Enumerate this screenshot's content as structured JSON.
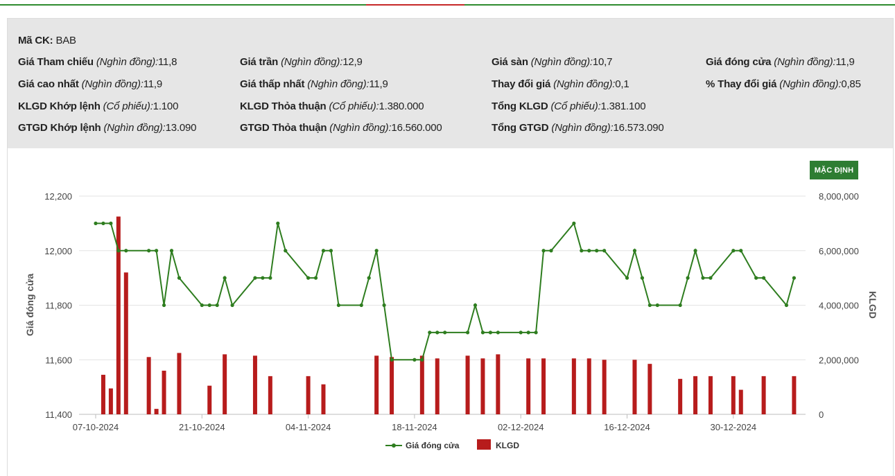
{
  "stock": {
    "code_label": "Mã CK:",
    "code": "BAB",
    "items": [
      {
        "label": "Giá Tham chiếu",
        "unit": "(Nghìn đồng):",
        "value": "11,8"
      },
      {
        "label": "Giá trần",
        "unit": "(Nghìn đồng):",
        "value": "12,9"
      },
      {
        "label": "Giá sàn",
        "unit": "(Nghìn đồng):",
        "value": "10,7"
      },
      {
        "label": "Giá đóng cửa",
        "unit": "(Nghìn đồng):",
        "value": "11,9"
      },
      {
        "label": "Giá cao nhất",
        "unit": "(Nghìn đồng):",
        "value": "11,9"
      },
      {
        "label": "Giá thấp nhất",
        "unit": "(Nghìn đồng):",
        "value": "11,9"
      },
      {
        "label": "Thay đổi giá",
        "unit": "(Nghìn đồng):",
        "value": "0,1"
      },
      {
        "label": "% Thay đổi giá",
        "unit": "(Nghìn đồng):",
        "value": "0,85"
      },
      {
        "label": "KLGD Khớp lệnh",
        "unit": "(Cổ phiếu):",
        "value": "1.100"
      },
      {
        "label": "KLGD Thỏa thuận",
        "unit": "(Cổ phiếu):",
        "value": "1.380.000"
      },
      {
        "label": "Tổng KLGD",
        "unit": "(Cổ phiếu):",
        "value": "1.381.100"
      },
      {
        "label": "GTGD Khớp lệnh",
        "unit": "(Nghìn đồng):",
        "value": "13.090"
      },
      {
        "label": "GTGD Thỏa thuận",
        "unit": "(Nghìn đồng):",
        "value": "16.560.000"
      },
      {
        "label": "Tổng GTGD",
        "unit": "(Nghìn đồng):",
        "value": "16.573.090"
      }
    ]
  },
  "controls": {
    "default_button": "MẶC ĐỊNH"
  },
  "colors": {
    "line": "#2e7d1f",
    "bar": "#b71c1c",
    "button": "#2e7d32",
    "accent_red": "#c62828"
  },
  "chart_data": {
    "type": "line+bar",
    "ylabel": "Giá đóng cửa",
    "y2label": "KLGD",
    "ylim": [
      11400,
      12200
    ],
    "y_ticks": [
      "12,200",
      "12,000",
      "11,800",
      "11,600",
      "11,400"
    ],
    "y2lim": [
      0,
      8000000
    ],
    "y2_ticks": [
      "8,000,000",
      "6,000,000",
      "4,000,000",
      "2,000,000",
      "0"
    ],
    "x_ticks": [
      "07-10-2024",
      "21-10-2024",
      "04-11-2024",
      "18-11-2024",
      "02-12-2024",
      "16-12-2024",
      "30-12-2024"
    ],
    "x_tick_days": [
      0,
      14,
      28,
      42,
      56,
      70,
      84
    ],
    "legend": [
      "Giá đóng cửa",
      "KLGD"
    ],
    "legend_position": "bottom-center",
    "series": [
      {
        "name": "Giá đóng cửa",
        "type": "line",
        "points": [
          [
            "07-10-2024",
            12100
          ],
          [
            "08-10-2024",
            12100
          ],
          [
            "09-10-2024",
            12100
          ],
          [
            "10-10-2024",
            12000
          ],
          [
            "11-10-2024",
            12000
          ],
          [
            "14-10-2024",
            12000
          ],
          [
            "15-10-2024",
            12000
          ],
          [
            "16-10-2024",
            11800
          ],
          [
            "17-10-2024",
            12000
          ],
          [
            "18-10-2024",
            11900
          ],
          [
            "21-10-2024",
            11800
          ],
          [
            "22-10-2024",
            11800
          ],
          [
            "23-10-2024",
            11800
          ],
          [
            "24-10-2024",
            11900
          ],
          [
            "25-10-2024",
            11800
          ],
          [
            "28-10-2024",
            11900
          ],
          [
            "29-10-2024",
            11900
          ],
          [
            "30-10-2024",
            11900
          ],
          [
            "31-10-2024",
            12100
          ],
          [
            "01-11-2024",
            12000
          ],
          [
            "04-11-2024",
            11900
          ],
          [
            "05-11-2024",
            11900
          ],
          [
            "06-11-2024",
            12000
          ],
          [
            "07-11-2024",
            12000
          ],
          [
            "08-11-2024",
            11800
          ],
          [
            "11-11-2024",
            11800
          ],
          [
            "12-11-2024",
            11900
          ],
          [
            "13-11-2024",
            12000
          ],
          [
            "14-11-2024",
            11800
          ],
          [
            "15-11-2024",
            11600
          ],
          [
            "18-11-2024",
            11600
          ],
          [
            "19-11-2024",
            11600
          ],
          [
            "20-11-2024",
            11700
          ],
          [
            "21-11-2024",
            11700
          ],
          [
            "22-11-2024",
            11700
          ],
          [
            "25-11-2024",
            11700
          ],
          [
            "26-11-2024",
            11800
          ],
          [
            "27-11-2024",
            11700
          ],
          [
            "28-11-2024",
            11700
          ],
          [
            "29-11-2024",
            11700
          ],
          [
            "02-12-2024",
            11700
          ],
          [
            "03-12-2024",
            11700
          ],
          [
            "04-12-2024",
            11700
          ],
          [
            "05-12-2024",
            12000
          ],
          [
            "06-12-2024",
            12000
          ],
          [
            "09-12-2024",
            12100
          ],
          [
            "10-12-2024",
            12000
          ],
          [
            "11-12-2024",
            12000
          ],
          [
            "12-12-2024",
            12000
          ],
          [
            "13-12-2024",
            12000
          ],
          [
            "16-12-2024",
            11900
          ],
          [
            "17-12-2024",
            12000
          ],
          [
            "18-12-2024",
            11900
          ],
          [
            "19-12-2024",
            11800
          ],
          [
            "20-12-2024",
            11800
          ],
          [
            "23-12-2024",
            11800
          ],
          [
            "24-12-2024",
            11900
          ],
          [
            "25-12-2024",
            12000
          ],
          [
            "26-12-2024",
            11900
          ],
          [
            "27-12-2024",
            11900
          ],
          [
            "30-12-2024",
            12000
          ],
          [
            "31-12-2024",
            12000
          ],
          [
            "02-01-2025",
            11900
          ],
          [
            "03-01-2025",
            11900
          ],
          [
            "06-01-2025",
            11800
          ],
          [
            "07-01-2025",
            11900
          ]
        ]
      },
      {
        "name": "KLGD",
        "type": "bar",
        "points": [
          [
            "08-10-2024",
            1450000
          ],
          [
            "09-10-2024",
            950000
          ],
          [
            "10-10-2024",
            7250000
          ],
          [
            "11-10-2024",
            5200000
          ],
          [
            "14-10-2024",
            2100000
          ],
          [
            "15-10-2024",
            200000
          ],
          [
            "16-10-2024",
            1600000
          ],
          [
            "18-10-2024",
            2250000
          ],
          [
            "22-10-2024",
            1050000
          ],
          [
            "24-10-2024",
            2200000
          ],
          [
            "28-10-2024",
            2150000
          ],
          [
            "30-10-2024",
            1400000
          ],
          [
            "04-11-2024",
            1400000
          ],
          [
            "06-11-2024",
            1100000
          ],
          [
            "13-11-2024",
            2150000
          ],
          [
            "15-11-2024",
            2100000
          ],
          [
            "19-11-2024",
            2150000
          ],
          [
            "21-11-2024",
            2050000
          ],
          [
            "25-11-2024",
            2150000
          ],
          [
            "27-11-2024",
            2050000
          ],
          [
            "29-11-2024",
            2200000
          ],
          [
            "03-12-2024",
            2050000
          ],
          [
            "05-12-2024",
            2050000
          ],
          [
            "09-12-2024",
            2050000
          ],
          [
            "11-12-2024",
            2050000
          ],
          [
            "13-12-2024",
            2000000
          ],
          [
            "17-12-2024",
            2000000
          ],
          [
            "19-12-2024",
            1850000
          ],
          [
            "23-12-2024",
            1300000
          ],
          [
            "25-12-2024",
            1400000
          ],
          [
            "27-12-2024",
            1400000
          ],
          [
            "30-12-2024",
            1400000
          ],
          [
            "31-12-2024",
            900000
          ],
          [
            "03-01-2025",
            1400000
          ],
          [
            "07-01-2025",
            1400000
          ]
        ]
      }
    ]
  }
}
